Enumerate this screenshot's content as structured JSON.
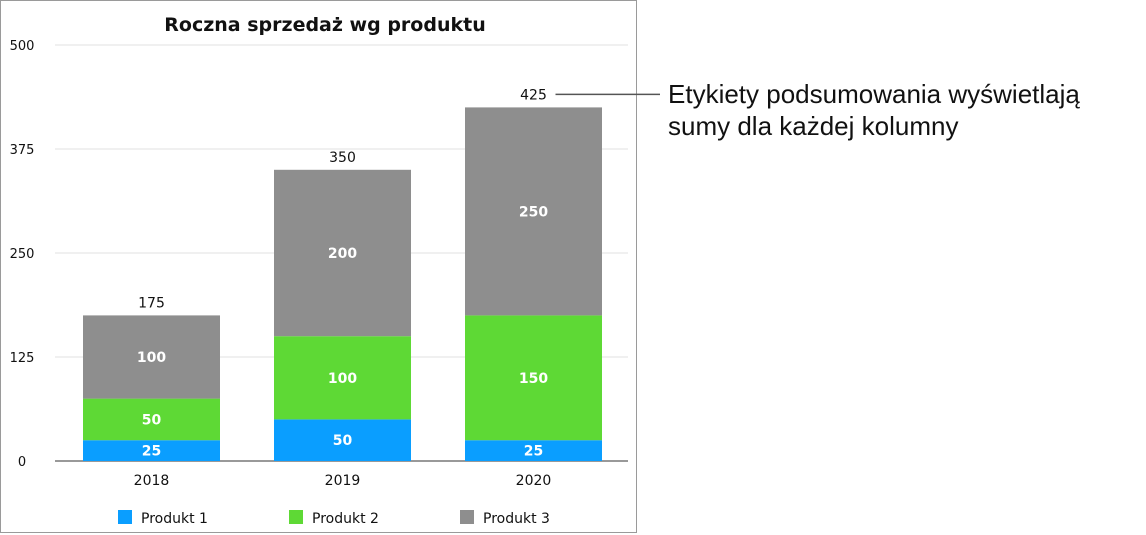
{
  "chart_data": {
    "type": "bar",
    "stacked": true,
    "title": "Roczna sprzedaż wg produktu",
    "categories": [
      "2018",
      "2019",
      "2020"
    ],
    "series": [
      {
        "name": "Produkt 1",
        "values": [
          25,
          50,
          25
        ],
        "color": "#0a9eff"
      },
      {
        "name": "Produkt 2",
        "values": [
          50,
          100,
          150
        ],
        "color": "#5ed935"
      },
      {
        "name": "Produkt 3",
        "values": [
          100,
          200,
          250
        ],
        "color": "#8e8e8e"
      }
    ],
    "totals": [
      175,
      350,
      425
    ],
    "yticks": [
      "0",
      "125",
      "250",
      "375",
      "500"
    ],
    "ylim": [
      0,
      500
    ],
    "grid": true,
    "legend_position": "bottom"
  },
  "callout": {
    "line1": "Etykiety podsumowania wyświetlają",
    "line2": "sumy dla każdej kolumny"
  }
}
